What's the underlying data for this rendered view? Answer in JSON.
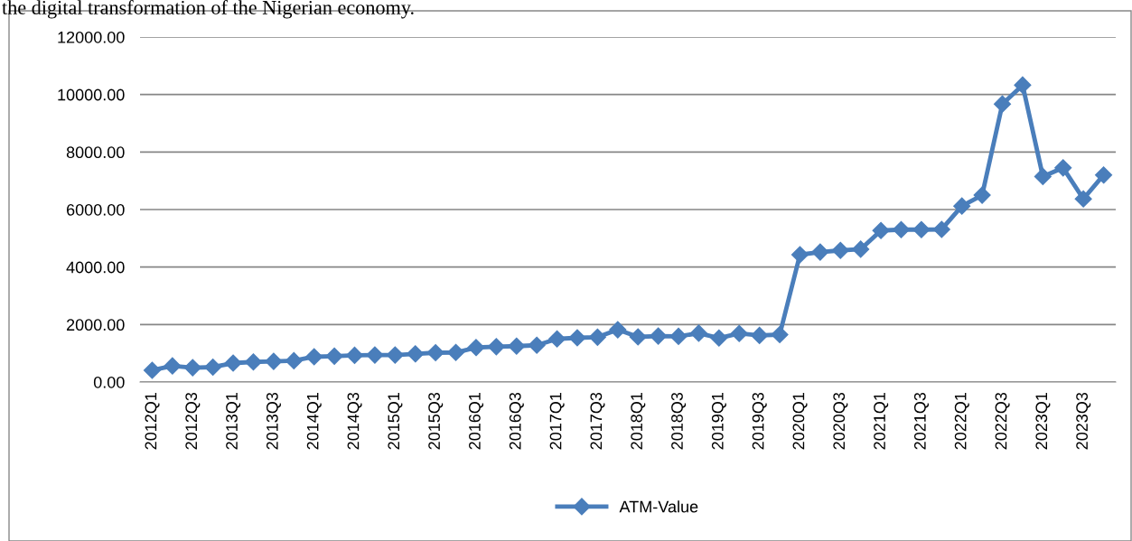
{
  "chart_data": {
    "type": "line",
    "categories": [
      "2012Q1",
      null,
      "2012Q3",
      null,
      "2013Q1",
      null,
      "2013Q3",
      null,
      "2014Q1",
      null,
      "2014Q3",
      null,
      "2015Q1",
      null,
      "2015Q3",
      null,
      "2016Q1",
      null,
      "2016Q3",
      null,
      "2017Q1",
      null,
      "2017Q3",
      null,
      "2018Q1",
      null,
      "2018Q3",
      null,
      "2019Q1",
      null,
      "2019Q3",
      null,
      "2020Q1",
      null,
      "2020Q3",
      null,
      "2021Q1",
      null,
      "2021Q3",
      null,
      "2022Q1",
      null,
      "2022Q3",
      null,
      "2023Q1",
      null,
      "2023Q3",
      null
    ],
    "series": [
      {
        "name": "ATM-Value",
        "color": "#4a7ebb",
        "values": [
          410,
          560,
          500,
          520,
          660,
          700,
          720,
          740,
          880,
          900,
          930,
          940,
          940,
          980,
          1020,
          1030,
          1200,
          1230,
          1250,
          1280,
          1500,
          1540,
          1560,
          1820,
          1570,
          1600,
          1590,
          1700,
          1530,
          1690,
          1620,
          1650,
          4430,
          4520,
          4580,
          4620,
          5270,
          5300,
          5300,
          5310,
          6120,
          6500,
          9670,
          10330,
          7150,
          7450,
          6370,
          7200
        ]
      }
    ],
    "ylim": [
      0,
      12000
    ],
    "yticks": [
      {
        "value": 0,
        "label": "0.00"
      },
      {
        "value": 2000,
        "label": "2000.00"
      },
      {
        "value": 4000,
        "label": "4000.00"
      },
      {
        "value": 6000,
        "label": "6000.00"
      },
      {
        "value": 8000,
        "label": "8000.00"
      },
      {
        "value": 10000,
        "label": "10000.00"
      },
      {
        "value": 12000,
        "label": "12000.00"
      }
    ],
    "grid": "y",
    "legend": "bottom",
    "marker": "diamond",
    "line_style": "solid",
    "annotations": [
      "the digital transformation of the Nigerian economy."
    ]
  }
}
